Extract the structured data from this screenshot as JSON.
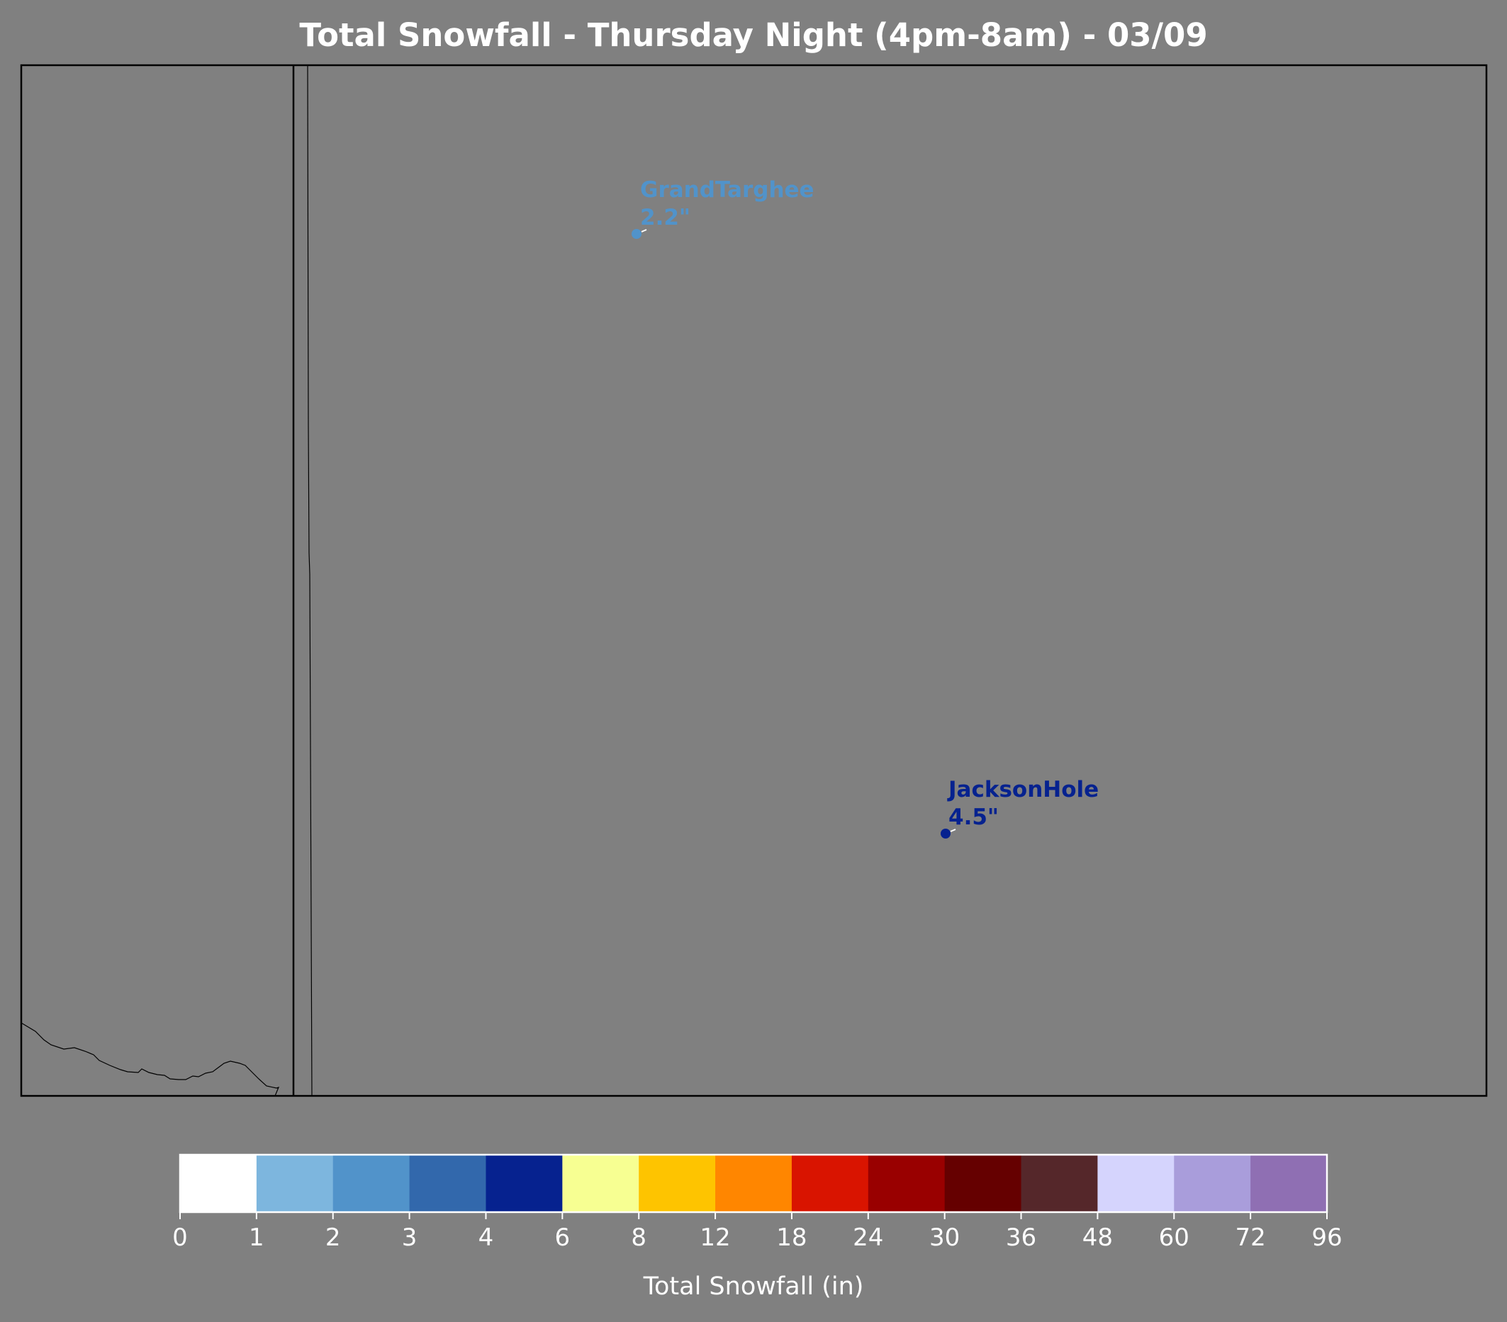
{
  "map": {
    "title": "Total Snowfall - Thursday Night (4pm-8am) - 03/09",
    "background_color": "#808080",
    "stations": [
      {
        "name": "GrandTarghee",
        "value": "2.2\"",
        "snowfall_in": 2.2,
        "color": "#5193ca"
      },
      {
        "name": "JacksonHole",
        "value": "4.5\"",
        "snowfall_in": 4.5,
        "color": "#06228f"
      }
    ]
  },
  "colorbar": {
    "label": "Total Snowfall (in)",
    "ticks": [
      "0",
      "1",
      "2",
      "3",
      "4",
      "6",
      "8",
      "12",
      "18",
      "24",
      "30",
      "36",
      "48",
      "60",
      "72",
      "96"
    ],
    "colors": [
      "#ffffff",
      "#7db6de",
      "#5193ca",
      "#3268ac",
      "#06228f",
      "#f7ff92",
      "#fec400",
      "#ff8600",
      "#d91400",
      "#990000",
      "#650000",
      "#55272a",
      "#d5d4fd",
      "#a99ddb",
      "#8f6fb3"
    ]
  }
}
